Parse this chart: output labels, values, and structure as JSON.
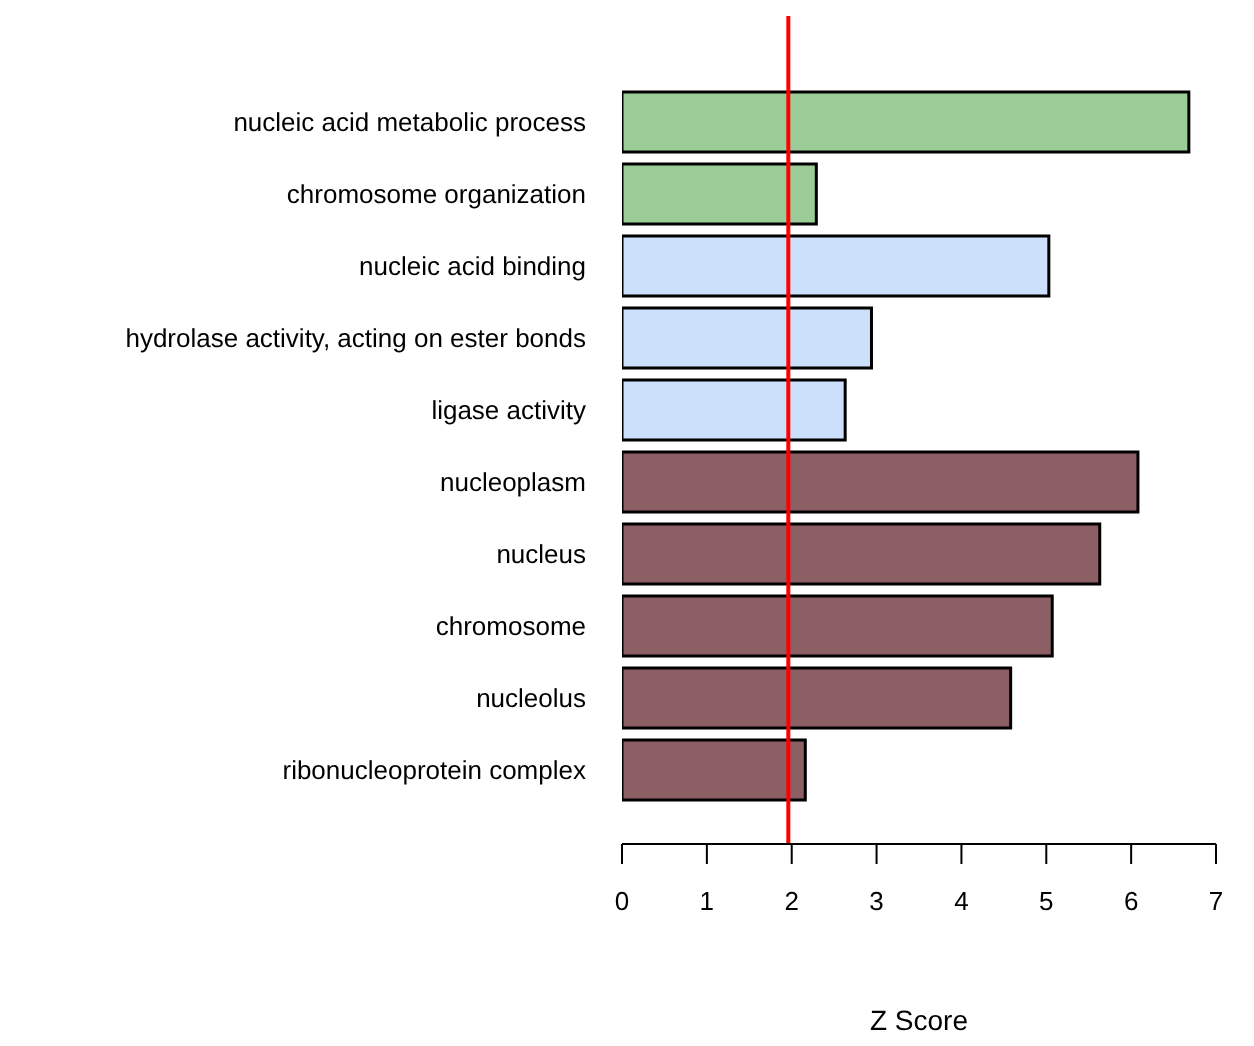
{
  "chart_data": {
    "type": "bar",
    "orientation": "horizontal",
    "xlabel": "Z Score",
    "categories": [
      "nucleic acid metabolic process",
      "chromosome organization",
      "nucleic acid binding",
      "hydrolase activity, acting on ester bonds",
      "ligase activity",
      "nucleoplasm",
      "nucleus",
      "chromosome",
      "nucleolus",
      "ribonucleoprotein complex"
    ],
    "values": [
      6.68,
      2.29,
      5.03,
      2.94,
      2.63,
      6.08,
      5.63,
      5.07,
      4.58,
      2.16
    ],
    "colors": [
      "#9ccc98",
      "#9ccc98",
      "#cce0fb",
      "#cce0fb",
      "#cce0fb",
      "#8c5f64",
      "#8c5f64",
      "#8c5f64",
      "#8c5f64",
      "#8c5f64"
    ],
    "xlim": [
      0,
      7
    ],
    "xticks": [
      0,
      1,
      2,
      3,
      4,
      5,
      6,
      7
    ],
    "ref_lines": [
      {
        "axis": "x",
        "value": 1.96,
        "color": "#ff0000"
      }
    ],
    "grid": false,
    "legend": false
  }
}
